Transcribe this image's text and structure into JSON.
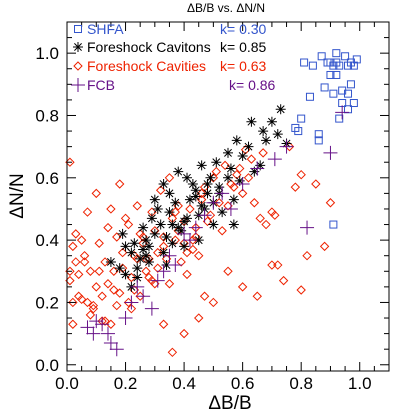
{
  "chart_data": {
    "type": "scatter",
    "title": "ΔB/B vs. ΔN/N",
    "xlabel": "ΔB/B",
    "ylabel": "ΔN/N",
    "xlim": [
      0.0,
      1.1
    ],
    "ylim": [
      -0.02,
      1.1
    ],
    "xticks": [
      "0.0",
      "0.2",
      "0.4",
      "0.6",
      "0.8",
      "1.0"
    ],
    "xtick_values": [
      0.0,
      0.2,
      0.4,
      0.6,
      0.8,
      1.0
    ],
    "yticks": [
      "0.0",
      "0.2",
      "0.4",
      "0.6",
      "0.8",
      "1.0"
    ],
    "ytick_values": [
      0.0,
      0.2,
      0.4,
      0.6,
      0.8,
      1.0
    ],
    "grid": false,
    "legend_position": "top-left",
    "series": [
      {
        "name": "SHFA",
        "k_label": "k= 0.30",
        "color": "#3355cc",
        "marker": "square",
        "x": [
          0.81,
          0.84,
          0.87,
          0.89,
          0.9,
          0.91,
          0.92,
          0.92,
          0.93,
          0.95,
          0.96,
          0.97,
          0.98,
          0.99,
          0.9,
          0.92,
          0.94,
          0.94,
          0.96,
          0.97,
          0.98,
          0.88,
          0.91,
          0.93,
          0.96,
          0.83,
          0.79,
          0.86,
          0.78,
          0.8,
          0.86,
          0.91
        ],
        "y": [
          0.97,
          0.96,
          0.99,
          0.97,
          0.97,
          0.96,
          1.0,
          0.97,
          0.96,
          0.99,
          0.96,
          0.97,
          0.96,
          0.98,
          0.93,
          0.93,
          0.88,
          0.84,
          0.87,
          0.9,
          0.84,
          0.89,
          0.87,
          0.79,
          0.82,
          0.86,
          0.75,
          0.74,
          0.76,
          0.79,
          0.72,
          0.45
        ]
      },
      {
        "name": "Foreshock Cavitons",
        "k_label": "k= 0.85",
        "color": "#000000",
        "marker": "asterisk",
        "x": [
          0.28,
          0.33,
          0.36,
          0.4,
          0.45,
          0.5,
          0.24,
          0.26,
          0.3,
          0.34,
          0.38,
          0.41,
          0.46,
          0.48,
          0.52,
          0.2,
          0.22,
          0.25,
          0.27,
          0.32,
          0.35,
          0.37,
          0.42,
          0.43,
          0.47,
          0.53,
          0.15,
          0.18,
          0.19,
          0.23,
          0.28,
          0.29,
          0.31,
          0.39,
          0.44,
          0.49,
          0.51,
          0.56,
          0.6,
          0.55,
          0.58,
          0.62,
          0.63,
          0.67,
          0.7,
          0.72,
          0.75,
          0.73,
          0.2,
          0.24,
          0.27,
          0.34,
          0.4,
          0.45,
          0.5,
          0.35,
          0.38,
          0.41,
          0.44,
          0.46,
          0.48,
          0.52,
          0.55,
          0.57,
          0.3,
          0.33,
          0.36,
          0.26,
          0.22,
          0.57,
          0.59,
          0.64,
          0.66,
          0.68
        ],
        "y": [
          0.33,
          0.36,
          0.39,
          0.46,
          0.48,
          0.52,
          0.31,
          0.37,
          0.42,
          0.41,
          0.44,
          0.47,
          0.51,
          0.55,
          0.57,
          0.38,
          0.36,
          0.34,
          0.4,
          0.45,
          0.49,
          0.52,
          0.53,
          0.58,
          0.5,
          0.49,
          0.33,
          0.31,
          0.42,
          0.39,
          0.38,
          0.47,
          0.5,
          0.43,
          0.56,
          0.6,
          0.65,
          0.63,
          0.67,
          0.68,
          0.72,
          0.7,
          0.78,
          0.75,
          0.78,
          0.74,
          0.71,
          0.82,
          0.29,
          0.28,
          0.35,
          0.32,
          0.38,
          0.4,
          0.45,
          0.55,
          0.62,
          0.6,
          0.54,
          0.64,
          0.58,
          0.55,
          0.6,
          0.53,
          0.53,
          0.58,
          0.45,
          0.44,
          0.25,
          0.45,
          0.59,
          0.62,
          0.64,
          0.72
        ]
      },
      {
        "name": "Foreshock Cavities",
        "k_label": "k= 0.63",
        "color": "#ee2200",
        "marker": "diamond",
        "x": [
          0.01,
          0.02,
          0.03,
          0.05,
          0.07,
          0.08,
          0.1,
          0.12,
          0.13,
          0.15,
          0.17,
          0.18,
          0.19,
          0.21,
          0.22,
          0.24,
          0.26,
          0.27,
          0.29,
          0.3,
          0.02,
          0.04,
          0.06,
          0.09,
          0.11,
          0.14,
          0.16,
          0.2,
          0.23,
          0.25,
          0.28,
          0.31,
          0.33,
          0.35,
          0.37,
          0.39,
          0.41,
          0.43,
          0.45,
          0.47,
          0.01,
          0.03,
          0.05,
          0.08,
          0.1,
          0.12,
          0.15,
          0.18,
          0.21,
          0.24,
          0.27,
          0.3,
          0.33,
          0.36,
          0.38,
          0.4,
          0.42,
          0.44,
          0.46,
          0.48,
          0.5,
          0.52,
          0.54,
          0.56,
          0.58,
          0.6,
          0.62,
          0.64,
          0.66,
          0.68,
          0.7,
          0.72,
          0.74,
          0.76,
          0.78,
          0.8,
          0.82,
          0.85,
          0.88,
          0.9,
          0.04,
          0.06,
          0.09,
          0.11,
          0.13,
          0.16,
          0.19,
          0.22,
          0.25,
          0.28,
          0.31,
          0.34,
          0.37,
          0.4,
          0.43,
          0.46,
          0.49,
          0.53,
          0.57,
          0.61,
          0.01,
          0.02,
          0.07,
          0.14,
          0.17,
          0.23,
          0.26,
          0.29,
          0.32,
          0.35,
          0.38,
          0.41,
          0.44,
          0.47,
          0.51,
          0.55,
          0.59,
          0.63,
          0.67,
          0.71,
          0.33,
          0.36,
          0.4,
          0.45,
          0.5,
          0.55,
          0.6,
          0.65,
          0.7,
          0.8
        ],
        "y": [
          0.65,
          0.13,
          0.42,
          0.4,
          0.49,
          0.3,
          0.55,
          0.22,
          0.33,
          0.5,
          0.41,
          0.58,
          0.36,
          0.45,
          0.28,
          0.51,
          0.39,
          0.34,
          0.27,
          0.43,
          0.2,
          0.29,
          0.35,
          0.18,
          0.39,
          0.44,
          0.3,
          0.47,
          0.24,
          0.42,
          0.34,
          0.31,
          0.38,
          0.26,
          0.49,
          0.33,
          0.29,
          0.4,
          0.35,
          0.22,
          0.27,
          0.33,
          0.21,
          0.16,
          0.25,
          0.14,
          0.13,
          0.23,
          0.2,
          0.34,
          0.3,
          0.26,
          0.41,
          0.47,
          0.43,
          0.39,
          0.5,
          0.41,
          0.55,
          0.46,
          0.6,
          0.52,
          0.64,
          0.58,
          0.61,
          0.55,
          0.6,
          0.52,
          0.47,
          0.45,
          0.49,
          0.32,
          0.27,
          0.7,
          0.57,
          0.61,
          0.35,
          0.58,
          0.38,
          0.52,
          0.22,
          0.33,
          0.19,
          0.3,
          0.14,
          0.24,
          0.31,
          0.18,
          0.22,
          0.28,
          0.36,
          0.34,
          0.4,
          0.46,
          0.37,
          0.53,
          0.48,
          0.43,
          0.57,
          0.69,
          0.3,
          0.38,
          0.2,
          0.26,
          0.19,
          0.35,
          0.41,
          0.49,
          0.56,
          0.6,
          0.51,
          0.36,
          0.44,
          0.57,
          0.62,
          0.51,
          0.63,
          0.66,
          0.68,
          0.48,
          0.13,
          0.04,
          0.1,
          0.15,
          0.2,
          0.3,
          0.25,
          0.22,
          0.32,
          0.24
        ]
      },
      {
        "name": "FCB",
        "k_label": "k= 0.86",
        "color": "#661188",
        "marker": "plus",
        "x": [
          0.07,
          0.09,
          0.1,
          0.12,
          0.14,
          0.15,
          0.17,
          0.2,
          0.22,
          0.24,
          0.26,
          0.29,
          0.31,
          0.33,
          0.35,
          0.37,
          0.4,
          0.42,
          0.44,
          0.47,
          0.5,
          0.53,
          0.56,
          0.6,
          0.65,
          0.71,
          0.75,
          0.9,
          0.94,
          0.82
        ],
        "y": [
          0.12,
          0.1,
          0.14,
          0.13,
          0.1,
          0.07,
          0.05,
          0.15,
          0.2,
          0.25,
          0.22,
          0.18,
          0.27,
          0.3,
          0.35,
          0.32,
          0.42,
          0.4,
          0.44,
          0.48,
          0.52,
          0.55,
          0.5,
          0.58,
          0.63,
          0.66,
          0.7,
          0.68,
          0.81,
          0.44
        ]
      }
    ]
  }
}
